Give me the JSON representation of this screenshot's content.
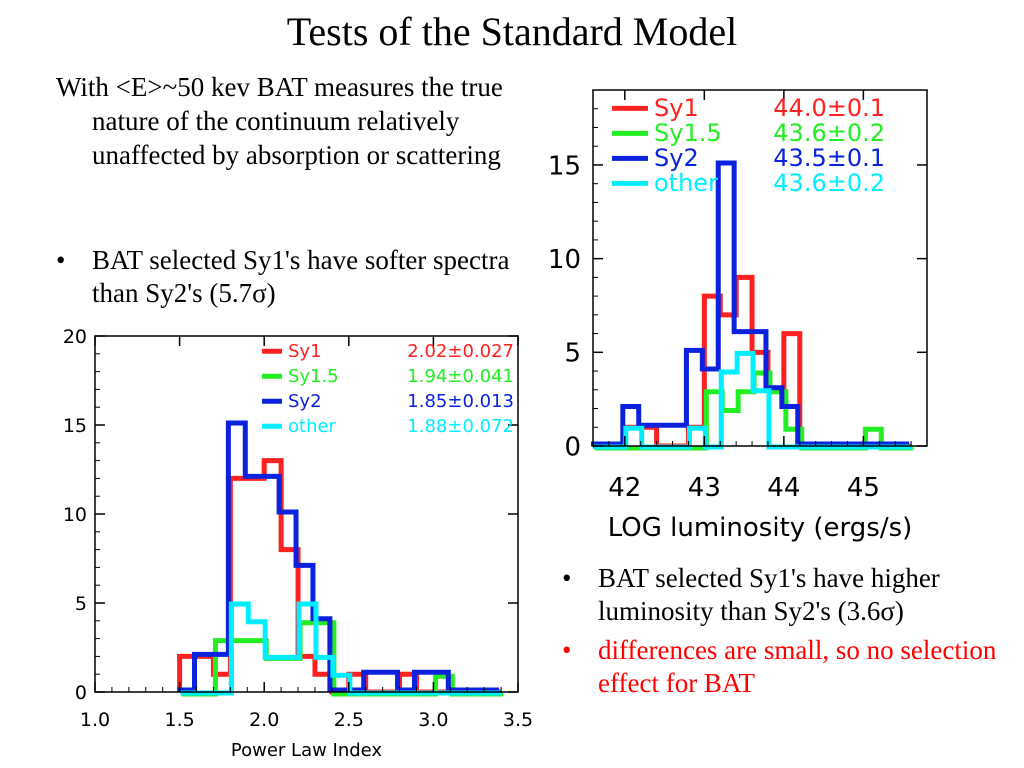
{
  "slide": {
    "title": "Tests of the Standard Model",
    "intro": "With <E>~50 kev BAT measures the true nature of the continuum relatively unaffected by absorption or scattering",
    "bullets_left": [
      {
        "text": "BAT selected Sy1's have softer spectra than Sy2's (5.7σ)",
        "color": "#000000"
      }
    ],
    "bullets_right": [
      {
        "text": "BAT selected Sy1's have higher luminosity than Sy2's (3.6σ)",
        "color": "#000000"
      },
      {
        "text": "differences are small, so no selection effect for BAT",
        "color": "#ff0000"
      }
    ],
    "bullet_glyph": "•"
  },
  "chart_data": [
    {
      "type": "histogram",
      "xlabel": "Power Law Index",
      "ylabel": "",
      "xlim": [
        1.0,
        3.5
      ],
      "ylim": [
        0,
        20
      ],
      "xticks": [
        1.0,
        1.5,
        2.0,
        2.5,
        3.0,
        3.5
      ],
      "xtick_labels": [
        "1.0",
        "1.5",
        "2.0",
        "2.5",
        "3.0",
        "3.5"
      ],
      "yticks": [
        0,
        5,
        10,
        15,
        20
      ],
      "ytick_labels": [
        "0",
        "5",
        "10",
        "15",
        "20"
      ],
      "legend_position": "top-right",
      "bin_edges": [
        1.5,
        1.6,
        1.7,
        1.8,
        1.9,
        2.0,
        2.1,
        2.2,
        2.3,
        2.4,
        2.5,
        2.6,
        2.7,
        2.8,
        2.9,
        3.0,
        3.1,
        3.2,
        3.3,
        3.4
      ],
      "series": [
        {
          "name": "Sy1",
          "stat": "2.02±0.027",
          "color": "#ff2020",
          "counts": [
            2,
            2,
            1,
            12,
            12,
            13,
            8,
            2,
            1,
            0,
            1,
            0,
            0,
            1,
            0,
            0,
            0,
            0,
            0
          ]
        },
        {
          "name": "Sy1.5",
          "stat": "1.94±0.041",
          "color": "#22ee22",
          "counts": [
            0,
            0,
            3,
            3,
            3,
            2,
            2,
            4,
            4,
            0,
            0,
            0,
            0,
            0,
            0,
            1,
            0,
            0,
            0
          ]
        },
        {
          "name": "Sy2",
          "stat": "1.85±0.013",
          "color": "#0a22dd",
          "counts": [
            0,
            2,
            2,
            15,
            12,
            12,
            10,
            7,
            4,
            0,
            0,
            1,
            1,
            0,
            1,
            1,
            0,
            0,
            0
          ]
        },
        {
          "name": "other",
          "stat": "1.88±0.072",
          "color": "#00eeff",
          "counts": [
            0,
            0,
            0,
            5,
            4,
            2,
            2,
            5,
            2,
            1,
            0,
            0,
            0,
            0,
            0,
            0,
            0,
            0,
            0
          ]
        }
      ]
    },
    {
      "type": "histogram",
      "xlabel": "LOG luminosity (ergs/s)",
      "ylabel": "",
      "xlim": [
        41.6,
        45.8
      ],
      "ylim": [
        0,
        19
      ],
      "xticks": [
        42,
        43,
        44,
        45
      ],
      "xtick_labels": [
        "42",
        "43",
        "44",
        "45"
      ],
      "yticks": [
        0,
        5,
        10,
        15
      ],
      "ytick_labels": [
        "0",
        "5",
        "10",
        "15"
      ],
      "legend_position": "top-left",
      "bin_edges": [
        41.6,
        41.8,
        42.0,
        42.2,
        42.4,
        42.6,
        42.8,
        43.0,
        43.2,
        43.4,
        43.6,
        43.8,
        44.0,
        44.2,
        44.4,
        44.6,
        44.8,
        45.0,
        45.2,
        45.4,
        45.6
      ],
      "series": [
        {
          "name": "Sy1",
          "stat": "44.0±0.1",
          "color": "#ff2020",
          "counts": [
            0,
            0,
            1,
            1,
            0,
            0,
            1,
            8,
            7,
            9,
            5,
            3,
            6,
            0,
            0,
            0,
            0,
            0,
            0,
            0
          ]
        },
        {
          "name": "Sy1.5",
          "stat": "43.6±0.2",
          "color": "#22ee22",
          "counts": [
            0,
            0,
            0,
            0,
            0,
            0,
            0,
            3,
            2,
            3,
            4,
            3,
            1,
            0,
            0,
            0,
            0,
            1,
            0,
            0
          ]
        },
        {
          "name": "Sy2",
          "stat": "43.5±0.1",
          "color": "#0a22dd",
          "counts": [
            0,
            0,
            2,
            1,
            1,
            1,
            5,
            4,
            15,
            6,
            6,
            3,
            2,
            0,
            0,
            0,
            0,
            0,
            0,
            0
          ]
        },
        {
          "name": "other",
          "stat": "43.6±0.2",
          "color": "#00eeff",
          "counts": [
            0,
            0,
            1,
            0,
            0,
            0,
            1,
            0,
            4,
            5,
            3,
            0,
            0,
            0,
            0,
            0,
            0,
            0,
            0,
            0
          ]
        }
      ]
    }
  ]
}
